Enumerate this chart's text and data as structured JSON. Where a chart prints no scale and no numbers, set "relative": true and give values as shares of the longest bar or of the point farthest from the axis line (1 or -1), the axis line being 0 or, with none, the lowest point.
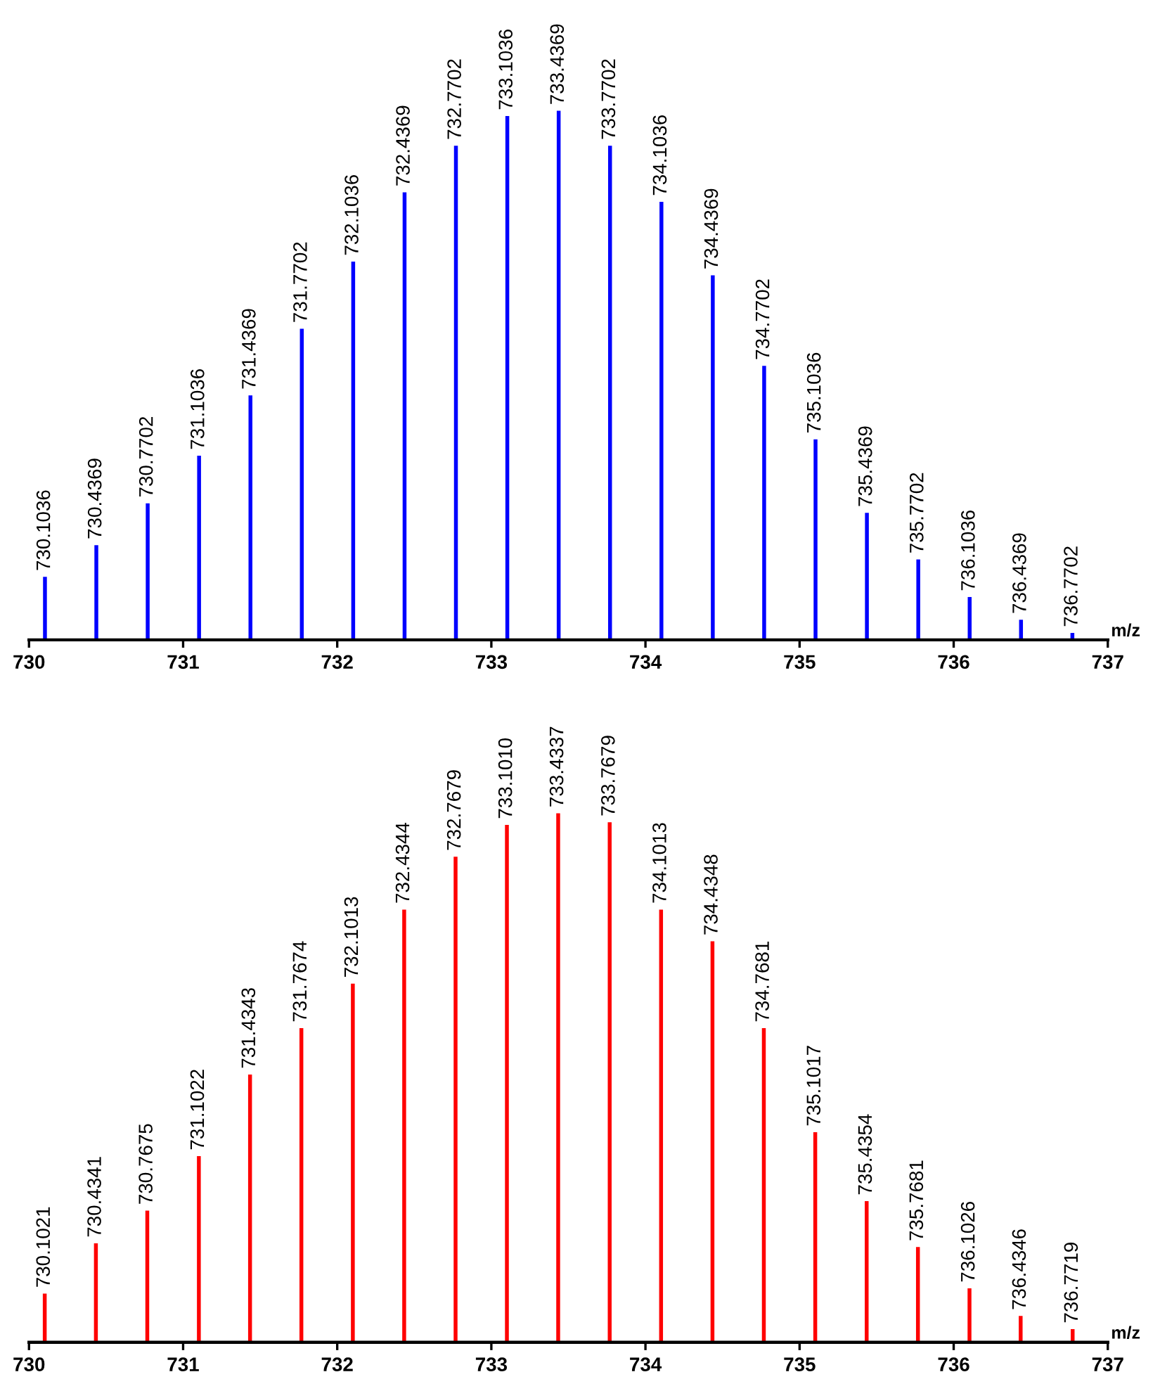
{
  "chart_data": [
    {
      "type": "bar",
      "relative": true,
      "xlabel": "m/z",
      "xlim": [
        730,
        737
      ],
      "xticks": [
        730,
        731,
        732,
        733,
        734,
        735,
        736,
        737
      ],
      "tick_labels": "x",
      "grid": false,
      "x": [
        730.1036,
        730.4369,
        730.7702,
        731.1036,
        731.4369,
        731.7702,
        732.1036,
        732.4369,
        732.7702,
        733.1036,
        733.4369,
        733.7702,
        734.1036,
        734.4369,
        734.7702,
        735.1036,
        735.4369,
        735.7702,
        736.1036,
        736.4369,
        736.7702
      ],
      "series": [
        {
          "color": "#0000ff",
          "values": [
            0.119,
            0.179,
            0.258,
            0.348,
            0.462,
            0.588,
            0.715,
            0.846,
            0.934,
            0.99,
            1,
            0.934,
            0.828,
            0.689,
            0.518,
            0.379,
            0.24,
            0.152,
            0.081,
            0.038,
            0.013
          ]
        }
      ],
      "annotations": [
        {
          "text": "730.1036",
          "x": 730.1036,
          "y": 0.119
        },
        {
          "text": "730.4369",
          "x": 730.4369,
          "y": 0.179
        },
        {
          "text": "730.7702",
          "x": 730.7702,
          "y": 0.258
        },
        {
          "text": "731.1036",
          "x": 731.1036,
          "y": 0.348
        },
        {
          "text": "731.4369",
          "x": 731.4369,
          "y": 0.462
        },
        {
          "text": "731.7702",
          "x": 731.7702,
          "y": 0.588
        },
        {
          "text": "732.1036",
          "x": 732.1036,
          "y": 0.715
        },
        {
          "text": "732.4369",
          "x": 732.4369,
          "y": 0.846
        },
        {
          "text": "732.7702",
          "x": 732.7702,
          "y": 0.934
        },
        {
          "text": "733.1036",
          "x": 733.1036,
          "y": 0.99
        },
        {
          "text": "733.4369",
          "x": 733.4369,
          "y": 1
        },
        {
          "text": "733.7702",
          "x": 733.7702,
          "y": 0.934
        },
        {
          "text": "734.1036",
          "x": 734.1036,
          "y": 0.828
        },
        {
          "text": "734.4369",
          "x": 734.4369,
          "y": 0.689
        },
        {
          "text": "734.7702",
          "x": 734.7702,
          "y": 0.518
        },
        {
          "text": "735.1036",
          "x": 735.1036,
          "y": 0.379
        },
        {
          "text": "735.4369",
          "x": 735.4369,
          "y": 0.24
        },
        {
          "text": "735.7702",
          "x": 735.7702,
          "y": 0.152
        },
        {
          "text": "736.1036",
          "x": 736.1036,
          "y": 0.081
        },
        {
          "text": "736.4369",
          "x": 736.4369,
          "y": 0.038
        },
        {
          "text": "736.7702",
          "x": 736.7702,
          "y": 0.013
        }
      ]
    },
    {
      "type": "bar",
      "relative": true,
      "xlabel": "m/z",
      "xlim": [
        730,
        737
      ],
      "xticks": [
        730,
        731,
        732,
        733,
        734,
        735,
        736,
        737
      ],
      "tick_labels": "x",
      "grid": false,
      "x": [
        730.1021,
        730.4341,
        730.7675,
        731.1022,
        731.4343,
        731.7674,
        732.1013,
        732.4344,
        732.7679,
        733.101,
        733.4337,
        733.7679,
        734.1013,
        734.4348,
        734.7681,
        735.1017,
        735.4354,
        735.7681,
        736.1026,
        736.4346,
        736.7719
      ],
      "series": [
        {
          "color": "#ff0000",
          "values": [
            0.092,
            0.187,
            0.249,
            0.352,
            0.506,
            0.594,
            0.678,
            0.818,
            0.918,
            0.978,
            1,
            0.983,
            0.818,
            0.758,
            0.594,
            0.397,
            0.267,
            0.18,
            0.102,
            0.05,
            0.025
          ]
        }
      ],
      "annotations": [
        {
          "text": "730.1021",
          "x": 730.1021,
          "y": 0.092
        },
        {
          "text": "730.4341",
          "x": 730.4341,
          "y": 0.187
        },
        {
          "text": "730.7675",
          "x": 730.7675,
          "y": 0.249
        },
        {
          "text": "731.1022",
          "x": 731.1022,
          "y": 0.352
        },
        {
          "text": "731.4343",
          "x": 731.4343,
          "y": 0.506
        },
        {
          "text": "731.7674",
          "x": 731.7674,
          "y": 0.594
        },
        {
          "text": "732.1013",
          "x": 732.1013,
          "y": 0.678
        },
        {
          "text": "732.4344",
          "x": 732.4344,
          "y": 0.818
        },
        {
          "text": "732.7679",
          "x": 732.7679,
          "y": 0.918
        },
        {
          "text": "733.1010",
          "x": 733.101,
          "y": 0.978
        },
        {
          "text": "733.4337",
          "x": 733.4337,
          "y": 1
        },
        {
          "text": "733.7679",
          "x": 733.7679,
          "y": 0.983
        },
        {
          "text": "734.1013",
          "x": 734.1013,
          "y": 0.818
        },
        {
          "text": "734.4348",
          "x": 734.4348,
          "y": 0.758
        },
        {
          "text": "734.7681",
          "x": 734.7681,
          "y": 0.594
        },
        {
          "text": "735.1017",
          "x": 735.1017,
          "y": 0.397
        },
        {
          "text": "735.4354",
          "x": 735.4354,
          "y": 0.267
        },
        {
          "text": "735.7681",
          "x": 735.7681,
          "y": 0.18
        },
        {
          "text": "736.1026",
          "x": 736.1026,
          "y": 0.102
        },
        {
          "text": "736.4346",
          "x": 736.4346,
          "y": 0.05
        },
        {
          "text": "736.7719",
          "x": 736.7719,
          "y": 0.025
        }
      ]
    }
  ]
}
